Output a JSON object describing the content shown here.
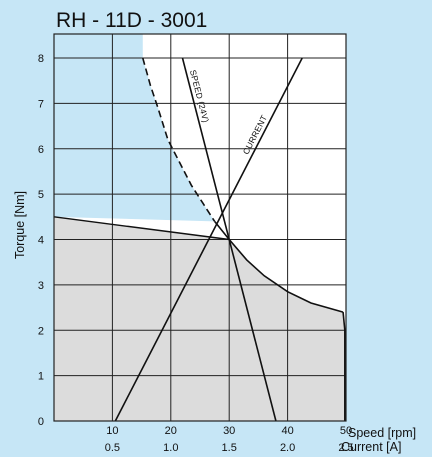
{
  "chart_data": {
    "type": "line",
    "title": "RH -  11D - 3001",
    "ylabel": "Torque [Nm]",
    "xlabel": "Speed [rpm]",
    "x2label": "Current [A]",
    "xlim": [
      0,
      50
    ],
    "ylim": [
      0,
      8
    ],
    "yticks": [
      "0",
      "1",
      "2",
      "3",
      "4",
      "5",
      "6",
      "7",
      "8"
    ],
    "xticks": [
      {
        "value": 10,
        "label": "10"
      },
      {
        "value": 20,
        "label": "20"
      },
      {
        "value": 30,
        "label": "30"
      },
      {
        "value": 40,
        "label": "40"
      },
      {
        "value": 50,
        "label": "50"
      }
    ],
    "x2ticks": [
      {
        "value": 10,
        "label": "0.5"
      },
      {
        "value": 20,
        "label": "1.0"
      },
      {
        "value": 30,
        "label": "1.5"
      },
      {
        "value": 40,
        "label": "2.0"
      },
      {
        "value": 50,
        "label": "2.5"
      }
    ],
    "grid": true,
    "series": [
      {
        "name": "SPEED (24V)",
        "label": "SPEED (24V)",
        "style": "solid",
        "x": [
          22.0,
          38.0
        ],
        "y": [
          8.0,
          0.0
        ]
      },
      {
        "name": "CURRENT",
        "label": "CURRENT",
        "style": "solid",
        "x": [
          10.5,
          42.5
        ],
        "y": [
          0.0,
          8.0
        ]
      },
      {
        "name": "envelope-dashed",
        "style": "dashed",
        "x": [
          15.2,
          16.5,
          17.8,
          19.5,
          21.5,
          23.5,
          25.5,
          27.5
        ],
        "y": [
          8.0,
          7.4,
          6.9,
          6.2,
          5.7,
          5.2,
          4.8,
          4.4
        ]
      },
      {
        "name": "envelope-solid",
        "style": "solid",
        "x": [
          27.5,
          30.0,
          33.0,
          36.0,
          40.0,
          44.0,
          49.5
        ],
        "y": [
          4.4,
          4.0,
          3.55,
          3.2,
          2.85,
          2.6,
          2.4
        ]
      }
    ],
    "region": {
      "x": [
        0.0,
        0.0,
        30.0,
        33.0,
        36.0,
        40.0,
        44.0,
        49.5,
        49.8,
        49.8
      ],
      "y": [
        0.0,
        4.5,
        4.0,
        3.55,
        3.2,
        2.85,
        2.6,
        2.4,
        2.0,
        0.0
      ],
      "fill": "#dcdcdc"
    },
    "colors": {
      "background": "#c6e6f6",
      "plot_background": "#ffffff",
      "region_fill": "#dcdcdc",
      "line": "#111111"
    }
  }
}
